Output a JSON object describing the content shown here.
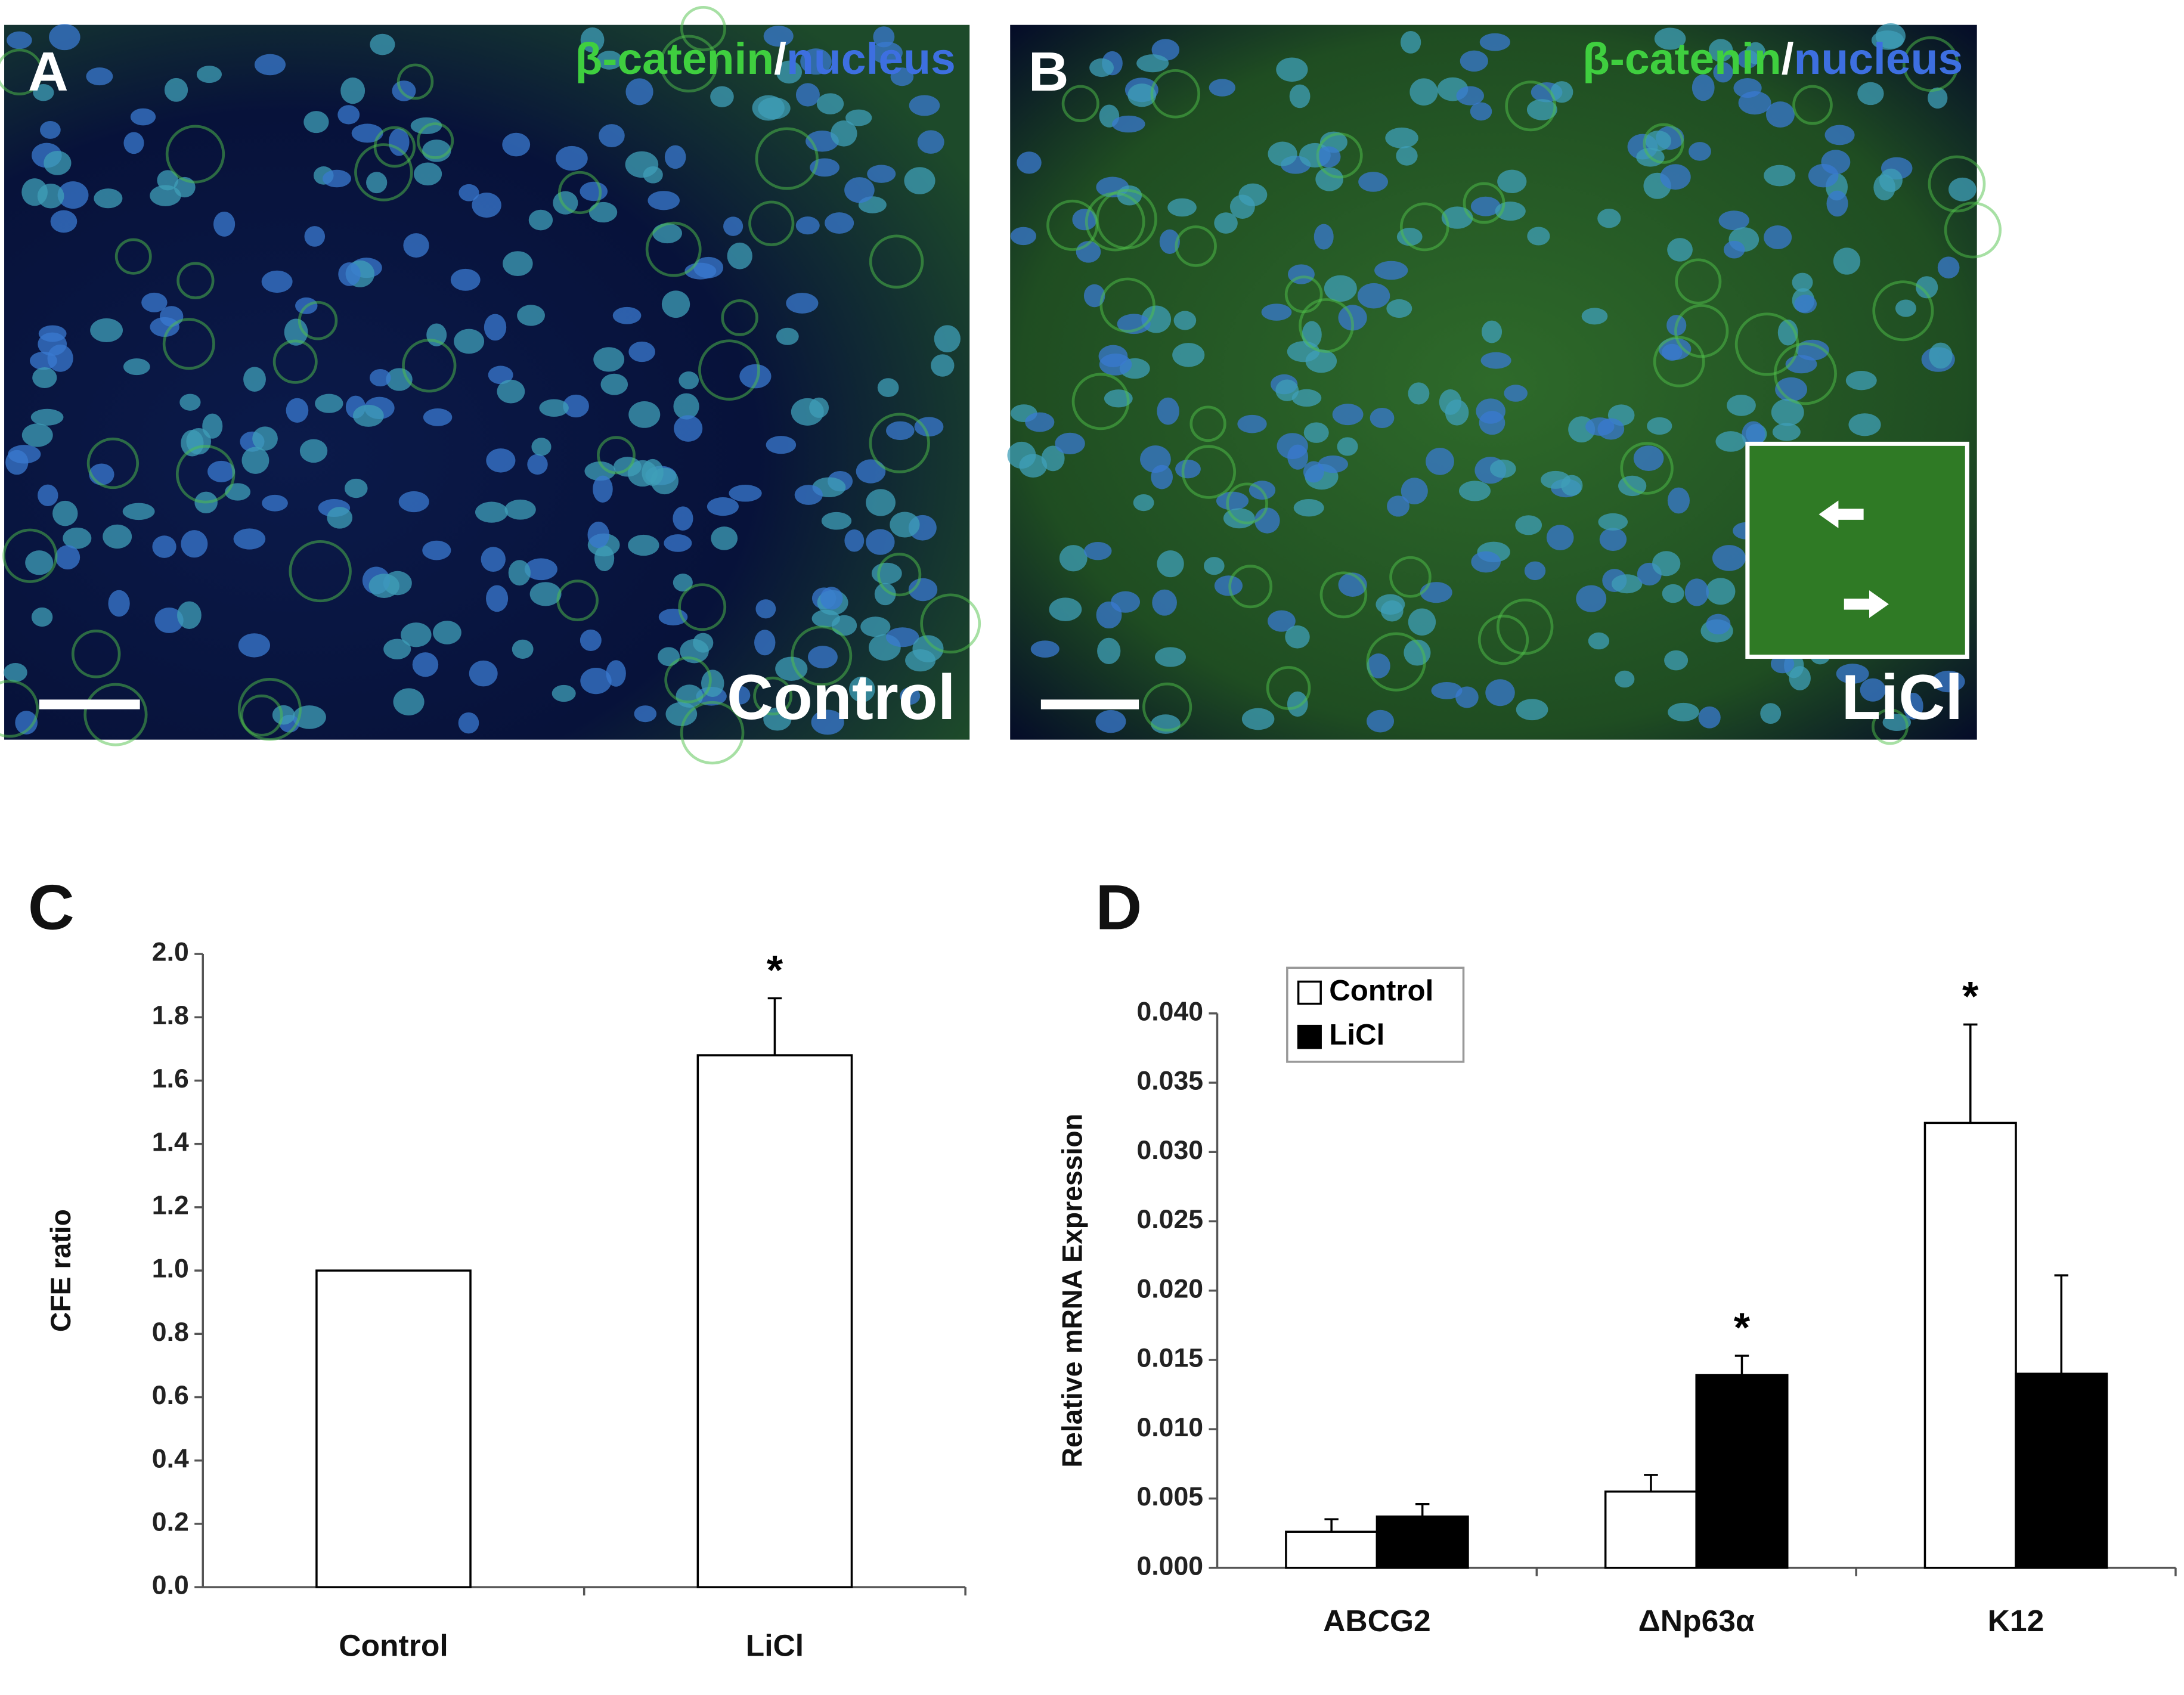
{
  "panels": [
    {
      "label": "A",
      "stain": "β-catenin",
      "separator": "/",
      "counterstain": "nucleus",
      "condition": "Control"
    },
    {
      "label": "B",
      "stain": "β-catenin",
      "separator": "/",
      "counterstain": "nucleus",
      "condition": "LiCl"
    }
  ],
  "chart_data": [
    {
      "type": "bar",
      "panel": "C",
      "ylabel": "CFE ratio",
      "categories": [
        "Control",
        "LiCl"
      ],
      "values": [
        1.0,
        1.68
      ],
      "errors": [
        null,
        0.18
      ],
      "color": "#ffffff",
      "annotations": [
        {
          "text": "*",
          "index": 1
        }
      ],
      "ylim": [
        0,
        2
      ],
      "yticks": [
        {
          "value": 0,
          "label": "0.0"
        },
        0.2,
        0.4,
        0.6,
        0.8,
        {
          "value": 1,
          "label": "1.0"
        },
        1.2,
        1.4,
        1.6,
        1.8,
        {
          "value": 2,
          "label": "2.0"
        }
      ]
    },
    {
      "type": "bar",
      "panel": "D",
      "ylabel": "Relative mRNA Expression",
      "categories": [
        "ABCG2",
        "ΔNp63α",
        "K12"
      ],
      "series": [
        {
          "name": "Control",
          "color": "#ffffff",
          "values": [
            0.0026,
            0.0055,
            0.0321
          ],
          "errors": [
            0.0009,
            0.0012,
            0.0071
          ]
        },
        {
          "name": "LiCl",
          "color": "#000000",
          "values": [
            0.0037,
            0.0139,
            0.014
          ],
          "errors": [
            0.0009,
            0.0014,
            0.0071
          ]
        }
      ],
      "annotations": [
        {
          "text": "*",
          "series": 1,
          "index": 1
        },
        {
          "text": "*",
          "series": 0,
          "index": 2
        }
      ],
      "legend": "top-left",
      "ylim": [
        0,
        0.04
      ],
      "yticks": [
        {
          "value": 0,
          "label": "0.000"
        },
        0.005,
        {
          "value": 0.01,
          "label": "0.010"
        },
        0.015,
        {
          "value": 0.02,
          "label": "0.020"
        },
        0.025,
        {
          "value": 0.03,
          "label": "0.030"
        },
        0.035,
        {
          "value": 0.04,
          "label": "0.040"
        }
      ]
    }
  ]
}
